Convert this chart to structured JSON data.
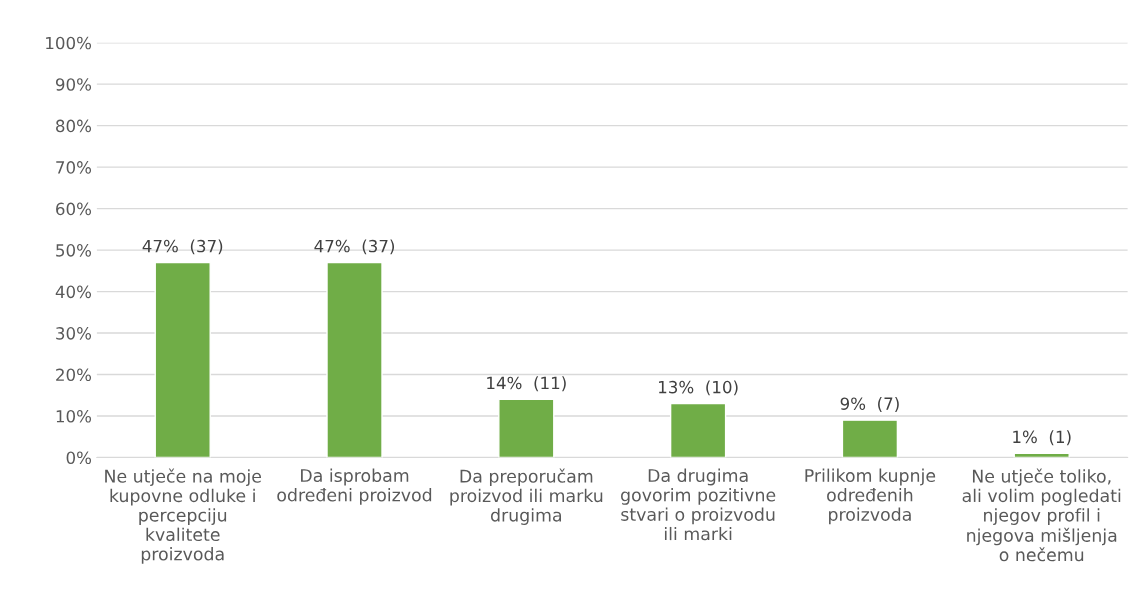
{
  "chart_data": {
    "type": "bar",
    "categories": [
      "Ne utječe na moje\nkupovne odluke i\npercepciju\nkvalitete\nproizvoda",
      "Da isprobam\nodređeni proizvod",
      "Da preporučam\nproizvod ili marku\ndrugima",
      "Da drugima\ngovorim pozitivne\nstvari o proizvodu\nili marki",
      "Prilikom kupnje\nodređenih\nproizvoda",
      "Ne utječe toliko,\nali volim pogledati\nnjegov profil i\nnjegova mišljenja\no nečemu"
    ],
    "values": [
      47,
      47,
      14,
      13,
      9,
      1
    ],
    "value_labels": [
      "47%  (37)",
      "47%  (37)",
      "14%  (11)",
      "13%  (10)",
      "9%  (7)",
      "1%  (1)"
    ],
    "color": "#70ad47",
    "ylim": [
      0,
      100
    ],
    "yticks": [
      {
        "value": 0,
        "label": "0%"
      },
      {
        "value": 10,
        "label": "10%"
      },
      {
        "value": 20,
        "label": "20%"
      },
      {
        "value": 30,
        "label": "30%"
      },
      {
        "value": 40,
        "label": "40%"
      },
      {
        "value": 50,
        "label": "50%"
      },
      {
        "value": 60,
        "label": "60%"
      },
      {
        "value": 70,
        "label": "70%"
      },
      {
        "value": 80,
        "label": "80%"
      },
      {
        "value": 90,
        "label": "90%"
      },
      {
        "value": 100,
        "label": "100%"
      }
    ],
    "grid": "y"
  }
}
